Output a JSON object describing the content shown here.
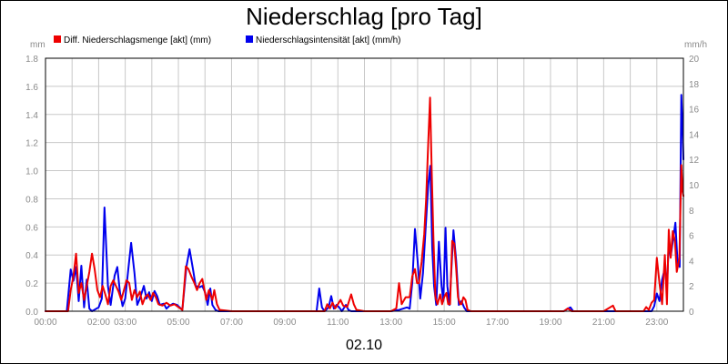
{
  "chart_data": {
    "type": "line",
    "title": "Niederschlag [pro Tag]",
    "date_label": "02.10",
    "y_left_unit": "mm",
    "y_right_unit": "mm/h",
    "y_left_lim": [
      0,
      1.8
    ],
    "y_right_lim": [
      0,
      20
    ],
    "y_left_ticks": [
      "0.0",
      "0.2",
      "0.4",
      "0.6",
      "0.8",
      "1.0",
      "1.2",
      "1.4",
      "1.6",
      "1.8"
    ],
    "y_right_ticks": [
      "0",
      "2",
      "4",
      "6",
      "8",
      "10",
      "12",
      "14",
      "16",
      "18",
      "20"
    ],
    "x_lim_hours": [
      0,
      24
    ],
    "x_ticks": [
      {
        "h": 0,
        "label": "00:00"
      },
      {
        "h": 2,
        "label": "02:00"
      },
      {
        "h": 3,
        "label": "03:00"
      },
      {
        "h": 5,
        "label": "05:00"
      },
      {
        "h": 7,
        "label": "07:00"
      },
      {
        "h": 9,
        "label": "09:00"
      },
      {
        "h": 11,
        "label": "11:00"
      },
      {
        "h": 13,
        "label": "13:00"
      },
      {
        "h": 15,
        "label": "15:00"
      },
      {
        "h": 17,
        "label": "17:00"
      },
      {
        "h": 19,
        "label": "19:00"
      },
      {
        "h": 21,
        "label": "21:00"
      },
      {
        "h": 23,
        "label": "23:00"
      }
    ],
    "grid": true,
    "legend_position": "top-left",
    "series": [
      {
        "name": "Niederschlagsintensität [akt] (mm/h)",
        "axis": "right",
        "color": "#0000ee",
        "points": [
          [
            0.0,
            0
          ],
          [
            0.5,
            0
          ],
          [
            0.8,
            0
          ],
          [
            0.95,
            3.3
          ],
          [
            1.05,
            2.4
          ],
          [
            1.15,
            3.5
          ],
          [
            1.25,
            0.8
          ],
          [
            1.35,
            3.6
          ],
          [
            1.45,
            0.3
          ],
          [
            1.55,
            2.5
          ],
          [
            1.65,
            0.2
          ],
          [
            1.75,
            0
          ],
          [
            2.0,
            0.3
          ],
          [
            2.12,
            1.0
          ],
          [
            2.22,
            8.2
          ],
          [
            2.35,
            2.0
          ],
          [
            2.45,
            0.5
          ],
          [
            2.6,
            2.8
          ],
          [
            2.7,
            3.5
          ],
          [
            2.8,
            1.5
          ],
          [
            2.9,
            0.4
          ],
          [
            3.0,
            1.0
          ],
          [
            3.15,
            4.0
          ],
          [
            3.22,
            5.4
          ],
          [
            3.35,
            3.0
          ],
          [
            3.45,
            0.5
          ],
          [
            3.55,
            1.0
          ],
          [
            3.7,
            2.0
          ],
          [
            3.8,
            1.0
          ],
          [
            3.9,
            1.5
          ],
          [
            4.0,
            0.8
          ],
          [
            4.1,
            1.6
          ],
          [
            4.2,
            1.2
          ],
          [
            4.3,
            0.5
          ],
          [
            4.45,
            0.6
          ],
          [
            4.55,
            0.2
          ],
          [
            4.65,
            0.4
          ],
          [
            4.8,
            0.6
          ],
          [
            4.95,
            0.5
          ],
          [
            5.05,
            0.3
          ],
          [
            5.15,
            0.1
          ],
          [
            5.3,
            3.5
          ],
          [
            5.42,
            4.9
          ],
          [
            5.55,
            3.3
          ],
          [
            5.65,
            2.0
          ],
          [
            5.8,
            1.9
          ],
          [
            5.9,
            2.0
          ],
          [
            6.0,
            1.5
          ],
          [
            6.1,
            0.5
          ],
          [
            6.2,
            1.8
          ],
          [
            6.28,
            0.5
          ],
          [
            6.4,
            0.1
          ],
          [
            6.5,
            0
          ],
          [
            7.0,
            0
          ],
          [
            9.0,
            0
          ],
          [
            10.0,
            0
          ],
          [
            10.2,
            0
          ],
          [
            10.3,
            1.8
          ],
          [
            10.4,
            0.3
          ],
          [
            10.5,
            0
          ],
          [
            10.65,
            0.3
          ],
          [
            10.75,
            1.2
          ],
          [
            10.85,
            0.2
          ],
          [
            10.95,
            0.5
          ],
          [
            11.05,
            0.3
          ],
          [
            11.15,
            0
          ],
          [
            11.3,
            0.5
          ],
          [
            11.4,
            0.1
          ],
          [
            11.5,
            0
          ],
          [
            12.0,
            0
          ],
          [
            13.0,
            0
          ],
          [
            13.3,
            0.1
          ],
          [
            13.6,
            0.3
          ],
          [
            13.7,
            0.2
          ],
          [
            13.8,
            2.3
          ],
          [
            13.9,
            6.5
          ],
          [
            14.0,
            4.0
          ],
          [
            14.1,
            1.0
          ],
          [
            14.2,
            3.0
          ],
          [
            14.3,
            6.5
          ],
          [
            14.4,
            10.0
          ],
          [
            14.48,
            11.5
          ],
          [
            14.55,
            5.0
          ],
          [
            14.62,
            2.0
          ],
          [
            14.7,
            0.5
          ],
          [
            14.8,
            5.5
          ],
          [
            14.9,
            2.0
          ],
          [
            14.97,
            0.8
          ],
          [
            15.05,
            6.6
          ],
          [
            15.12,
            2.0
          ],
          [
            15.2,
            0.5
          ],
          [
            15.35,
            6.4
          ],
          [
            15.45,
            4.0
          ],
          [
            15.55,
            0.5
          ],
          [
            15.65,
            0.8
          ],
          [
            15.75,
            0.3
          ],
          [
            15.85,
            0
          ],
          [
            16.0,
            0
          ],
          [
            18.0,
            0
          ],
          [
            19.5,
            0
          ],
          [
            19.65,
            0.2
          ],
          [
            19.75,
            0.3
          ],
          [
            19.85,
            0
          ],
          [
            21.0,
            0
          ],
          [
            21.3,
            0
          ],
          [
            22.5,
            0
          ],
          [
            22.8,
            0
          ],
          [
            22.9,
            0.4
          ],
          [
            23.0,
            1.4
          ],
          [
            23.1,
            0.8
          ],
          [
            23.2,
            2.5
          ],
          [
            23.3,
            3.4
          ],
          [
            23.38,
            1.8
          ],
          [
            23.45,
            5.4
          ],
          [
            23.52,
            4.3
          ],
          [
            23.6,
            5.5
          ],
          [
            23.7,
            7.0
          ],
          [
            23.78,
            3.8
          ],
          [
            23.86,
            3.5
          ],
          [
            23.92,
            17.1
          ],
          [
            23.97,
            14.5
          ],
          [
            24.0,
            12.0
          ]
        ]
      },
      {
        "name": "Diff. Niederschlagsmenge [akt] (mm)",
        "axis": "left",
        "color": "#ee0000",
        "points": [
          [
            0.0,
            0
          ],
          [
            0.5,
            0
          ],
          [
            0.85,
            0
          ],
          [
            0.95,
            0.15
          ],
          [
            1.05,
            0.25
          ],
          [
            1.15,
            0.41
          ],
          [
            1.25,
            0.13
          ],
          [
            1.35,
            0.2
          ],
          [
            1.45,
            0.08
          ],
          [
            1.55,
            0.18
          ],
          [
            1.65,
            0.28
          ],
          [
            1.75,
            0.41
          ],
          [
            1.85,
            0.3
          ],
          [
            1.95,
            0.15
          ],
          [
            2.05,
            0.1
          ],
          [
            2.15,
            0.18
          ],
          [
            2.25,
            0.12
          ],
          [
            2.35,
            0.05
          ],
          [
            2.45,
            0.18
          ],
          [
            2.55,
            0.22
          ],
          [
            2.65,
            0.18
          ],
          [
            2.75,
            0.14
          ],
          [
            2.85,
            0.08
          ],
          [
            2.95,
            0.15
          ],
          [
            3.05,
            0.22
          ],
          [
            3.15,
            0.2
          ],
          [
            3.25,
            0.08
          ],
          [
            3.35,
            0.15
          ],
          [
            3.45,
            0.1
          ],
          [
            3.55,
            0.14
          ],
          [
            3.65,
            0.05
          ],
          [
            3.75,
            0.1
          ],
          [
            3.85,
            0.12
          ],
          [
            3.95,
            0.08
          ],
          [
            4.05,
            0.13
          ],
          [
            4.15,
            0.1
          ],
          [
            4.25,
            0.05
          ],
          [
            4.4,
            0.04
          ],
          [
            4.55,
            0.06
          ],
          [
            4.7,
            0.04
          ],
          [
            4.85,
            0.05
          ],
          [
            5.0,
            0.03
          ],
          [
            5.15,
            0.01
          ],
          [
            5.28,
            0.32
          ],
          [
            5.38,
            0.3
          ],
          [
            5.48,
            0.25
          ],
          [
            5.6,
            0.2
          ],
          [
            5.7,
            0.15
          ],
          [
            5.8,
            0.2
          ],
          [
            5.9,
            0.23
          ],
          [
            5.98,
            0.15
          ],
          [
            6.05,
            0.08
          ],
          [
            6.15,
            0.15
          ],
          [
            6.28,
            0.08
          ],
          [
            6.35,
            0.15
          ],
          [
            6.45,
            0.05
          ],
          [
            6.55,
            0.01
          ],
          [
            7.0,
            0
          ],
          [
            9.0,
            0
          ],
          [
            10.0,
            0
          ],
          [
            10.5,
            0
          ],
          [
            10.6,
            0.05
          ],
          [
            10.7,
            0.02
          ],
          [
            10.8,
            0.06
          ],
          [
            10.9,
            0.02
          ],
          [
            11.0,
            0.05
          ],
          [
            11.1,
            0.08
          ],
          [
            11.2,
            0.04
          ],
          [
            11.35,
            0.03
          ],
          [
            11.5,
            0.12
          ],
          [
            11.6,
            0.05
          ],
          [
            11.7,
            0.01
          ],
          [
            12.0,
            0
          ],
          [
            13.0,
            0
          ],
          [
            13.2,
            0.02
          ],
          [
            13.3,
            0.2
          ],
          [
            13.4,
            0.05
          ],
          [
            13.55,
            0.1
          ],
          [
            13.7,
            0.1
          ],
          [
            13.8,
            0.25
          ],
          [
            13.9,
            0.3
          ],
          [
            13.98,
            0.2
          ],
          [
            14.05,
            0.2
          ],
          [
            14.15,
            0.35
          ],
          [
            14.25,
            0.55
          ],
          [
            14.32,
            0.8
          ],
          [
            14.4,
            1.2
          ],
          [
            14.47,
            1.52
          ],
          [
            14.53,
            1.0
          ],
          [
            14.6,
            0.5
          ],
          [
            14.67,
            0.1
          ],
          [
            14.75,
            0.05
          ],
          [
            14.85,
            0.12
          ],
          [
            14.92,
            0.05
          ],
          [
            15.0,
            0.1
          ],
          [
            15.08,
            0.13
          ],
          [
            15.15,
            0.05
          ],
          [
            15.22,
            0.05
          ],
          [
            15.3,
            0.5
          ],
          [
            15.38,
            0.48
          ],
          [
            15.45,
            0.3
          ],
          [
            15.52,
            0.1
          ],
          [
            15.6,
            0.05
          ],
          [
            15.65,
            0.05
          ],
          [
            15.72,
            0.1
          ],
          [
            15.8,
            0.08
          ],
          [
            15.88,
            0.01
          ],
          [
            16.0,
            0
          ],
          [
            18.0,
            0
          ],
          [
            19.5,
            0
          ],
          [
            19.65,
            0.02
          ],
          [
            19.8,
            0
          ],
          [
            21.0,
            0
          ],
          [
            21.35,
            0.04
          ],
          [
            21.45,
            0
          ],
          [
            22.0,
            0
          ],
          [
            22.5,
            0
          ],
          [
            22.6,
            0.03
          ],
          [
            22.7,
            0.01
          ],
          [
            22.8,
            0.06
          ],
          [
            22.9,
            0.08
          ],
          [
            23.0,
            0.38
          ],
          [
            23.1,
            0.2
          ],
          [
            23.2,
            0.05
          ],
          [
            23.3,
            0.4
          ],
          [
            23.38,
            0.05
          ],
          [
            23.45,
            0.58
          ],
          [
            23.52,
            0.38
          ],
          [
            23.6,
            0.57
          ],
          [
            23.68,
            0.5
          ],
          [
            23.75,
            0.28
          ],
          [
            23.85,
            0.38
          ],
          [
            23.92,
            1.04
          ],
          [
            23.97,
            0.85
          ],
          [
            24.0,
            0.82
          ]
        ]
      }
    ]
  }
}
